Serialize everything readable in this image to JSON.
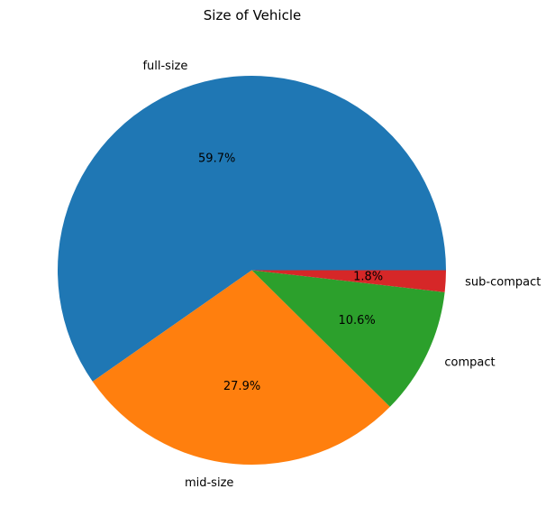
{
  "chart_data": {
    "type": "pie",
    "title": "Size of Vehicle",
    "categories": [
      "full-size",
      "mid-size",
      "compact",
      "sub-compact"
    ],
    "values": [
      59.7,
      27.9,
      10.6,
      1.8
    ],
    "value_labels": [
      "59.7%",
      "27.9%",
      "10.6%",
      "1.8%"
    ],
    "colors": [
      "#1f77b4",
      "#ff7f0e",
      "#2ca02c",
      "#d62728"
    ],
    "start_angle_deg": 0,
    "direction": "counterclockwise",
    "legend": "none"
  }
}
